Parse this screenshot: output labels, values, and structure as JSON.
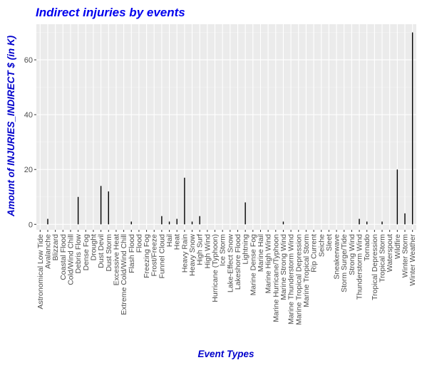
{
  "chart_data": {
    "type": "bar",
    "title": "Indirect injuries by events",
    "xlabel": "Event Types",
    "ylabel": "Amount of INJURIES_INDIRECT $ (in K)",
    "ylim": [
      -2,
      73
    ],
    "yticks": [
      0,
      20,
      40,
      60
    ],
    "grid": true,
    "legend": "none",
    "categories": [
      "Astronomical Low Tide",
      "Avalanche",
      "Blizzard",
      "Coastal Flood",
      "Cold/Wind Chill",
      "Debris Flow",
      "Dense Fog",
      "Drought",
      "Dust Devil",
      "Dust Storm",
      "Excessive Heat",
      "Extreme Cold/Wind Chill",
      "Flash Flood",
      "Flood",
      "Freezing Fog",
      "Frost/Freeze",
      "Funnel Cloud",
      "Hail",
      "Heat",
      "Heavy Rain",
      "Heavy Snow",
      "High Surf",
      "High Wind",
      "Hurricane (Typhoon)",
      "Ice Storm",
      "Lake-Effect Snow",
      "Lakeshore Flood",
      "Lightning",
      "Marine Dense Fog",
      "Marine Hail",
      "Marine High Wind",
      "Marine Hurricane/Typhoon",
      "Marine Strong Wind",
      "Marine Thunderstorm Wind",
      "Marine Tropical Depression",
      "Marine Tropical Storm",
      "Rip Current",
      "Seiche",
      "Sleet",
      "Sneakerwave",
      "Storm Surge/Tide",
      "Strong Wind",
      "Thunderstorm Wind",
      "Tornado",
      "Tropical Depression",
      "Tropical Storm",
      "Waterspout",
      "Wildfire",
      "Winter Storm",
      "Winter Weather"
    ],
    "values": [
      0,
      2,
      0,
      0,
      0,
      10,
      0,
      0,
      14,
      12,
      0,
      0,
      1,
      0,
      0,
      0,
      3,
      1,
      2,
      17,
      1,
      3,
      0,
      0,
      0,
      0,
      0,
      8,
      0,
      0,
      0,
      0,
      1,
      0,
      0,
      0,
      0,
      0,
      0,
      0,
      0,
      0,
      2,
      1,
      0,
      1,
      0,
      20,
      4,
      70
    ],
    "colors": {
      "panel": "#ebebeb",
      "grid_major": "#ffffff",
      "grid_minor": "#f5f5f5",
      "bar": "#000000",
      "title": "#0000ee",
      "axis_title": "#0000cc",
      "tick_text": "#4d4d4d",
      "tick_mark": "#333333"
    }
  }
}
